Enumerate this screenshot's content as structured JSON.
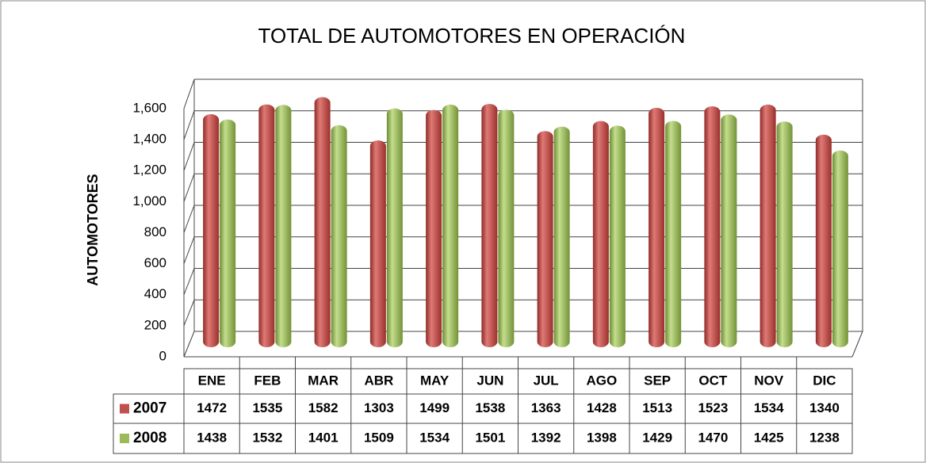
{
  "chart_data": {
    "type": "bar",
    "title": "TOTAL DE AUTOMOTORES EN OPERACIÓN",
    "y_label": "AUTOMOTORES",
    "categories": [
      "ENE",
      "FEB",
      "MAR",
      "ABR",
      "MAY",
      "JUN",
      "JUL",
      "AGO",
      "SEP",
      "OCT",
      "NOV",
      "DIC"
    ],
    "series": [
      {
        "name": "2007",
        "color": "#c0504d",
        "values": [
          1472,
          1535,
          1582,
          1303,
          1499,
          1538,
          1363,
          1428,
          1513,
          1523,
          1534,
          1340
        ]
      },
      {
        "name": "2008",
        "color": "#9bbb59",
        "values": [
          1438,
          1532,
          1401,
          1509,
          1534,
          1501,
          1392,
          1398,
          1429,
          1470,
          1425,
          1238
        ]
      }
    ],
    "ylim": [
      0,
      1600
    ],
    "yticks": [
      0,
      200,
      400,
      600,
      800,
      {
        "value": 1000,
        "label": "1,000"
      },
      {
        "value": 1200,
        "label": "1,200"
      },
      {
        "value": 1400,
        "label": "1,400"
      },
      {
        "value": 1600,
        "label": "1,600"
      }
    ],
    "grid": true
  }
}
